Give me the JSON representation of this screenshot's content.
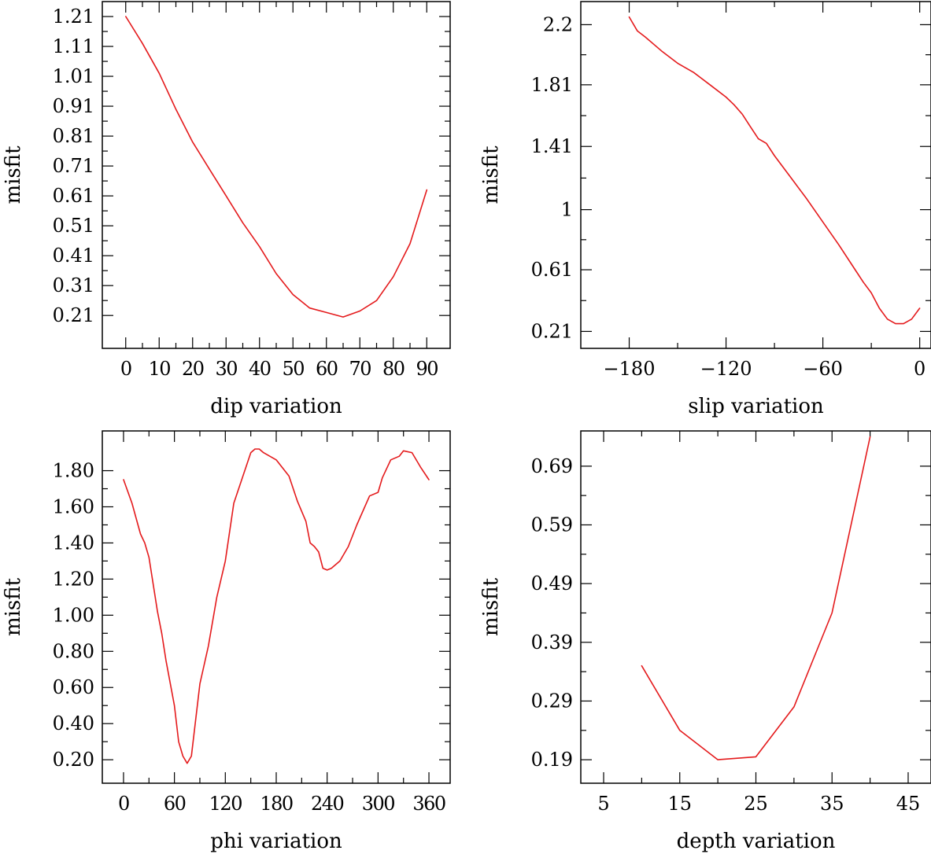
{
  "colors": {
    "line": "#e41a1c",
    "axes": "#000000",
    "background": "#ffffff"
  },
  "chart_data": [
    {
      "type": "line",
      "xlabel": "dip     variation",
      "ylabel": "misfit",
      "xlim": [
        -7,
        97
      ],
      "ylim": [
        0.1,
        1.26
      ],
      "xticks": [
        0,
        10,
        20,
        30,
        40,
        50,
        60,
        70,
        80,
        90
      ],
      "xtick_labels": [
        "0",
        "10",
        "20",
        "30",
        "40",
        "50",
        "60",
        "70",
        "80",
        "90"
      ],
      "xtick_compact": true,
      "yticks": [
        0.21,
        0.31,
        0.41,
        0.51,
        0.61,
        0.71,
        0.81,
        0.91,
        1.01,
        1.11,
        1.21
      ],
      "ytick_labels": [
        "0.21",
        "0.31",
        "0.41",
        "0.51",
        "0.61",
        "0.71",
        "0.81",
        "0.91",
        "1.01",
        "1.11",
        "1.21"
      ],
      "grid": false,
      "series": [
        {
          "x": [
            0,
            5,
            10,
            15,
            20,
            25,
            30,
            35,
            40,
            45,
            50,
            55,
            60,
            65,
            70,
            75,
            80,
            85,
            90
          ],
          "y": [
            1.21,
            1.12,
            1.02,
            0.9,
            0.79,
            0.7,
            0.61,
            0.52,
            0.44,
            0.35,
            0.28,
            0.235,
            0.22,
            0.205,
            0.225,
            0.26,
            0.34,
            0.45,
            0.63
          ]
        }
      ]
    },
    {
      "type": "line",
      "xlabel": "slip    variation",
      "ylabel": "misfit",
      "xlim": [
        -210,
        7
      ],
      "ylim": [
        0.1,
        2.35
      ],
      "xticks": [
        -180,
        -120,
        -60,
        0
      ],
      "xtick_labels": [
        "−180",
        "−120",
        "−60",
        "0"
      ],
      "xtick_compact": false,
      "yticks": [
        0.21,
        0.61,
        1,
        1.41,
        1.81,
        2.2
      ],
      "ytick_labels": [
        "0.21",
        "0.61",
        "1",
        "1.41",
        "1.81",
        "2.2"
      ],
      "grid": false,
      "series": [
        {
          "x": [
            -180,
            -175,
            -170,
            -160,
            -150,
            -140,
            -130,
            -120,
            -115,
            -110,
            -105,
            -100,
            -95,
            -90,
            -80,
            -70,
            -60,
            -50,
            -40,
            -35,
            -30,
            -25,
            -20,
            -15,
            -10,
            -5,
            0
          ],
          "y": [
            2.25,
            2.16,
            2.12,
            2.03,
            1.95,
            1.89,
            1.81,
            1.73,
            1.68,
            1.62,
            1.54,
            1.46,
            1.43,
            1.35,
            1.21,
            1.07,
            0.92,
            0.77,
            0.61,
            0.53,
            0.46,
            0.36,
            0.29,
            0.26,
            0.26,
            0.29,
            0.36
          ]
        }
      ]
    },
    {
      "type": "line",
      "xlabel": "phi     variation",
      "ylabel": "misfit",
      "xlim": [
        -25,
        385
      ],
      "ylim": [
        0.07,
        2.02
      ],
      "xticks": [
        0,
        60,
        120,
        180,
        240,
        300,
        360
      ],
      "xtick_labels": [
        "0",
        "60",
        "120",
        "180",
        "240",
        "300",
        "360"
      ],
      "xtick_compact": true,
      "yticks": [
        0.2,
        0.4,
        0.6,
        0.8,
        1.0,
        1.2,
        1.4,
        1.6,
        1.8
      ],
      "ytick_labels": [
        "0.20",
        "0.40",
        "0.60",
        "0.80",
        "1.00",
        "1.20",
        "1.40",
        "1.60",
        "1.80"
      ],
      "grid": false,
      "series": [
        {
          "x": [
            0,
            10,
            20,
            25,
            30,
            40,
            45,
            50,
            60,
            65,
            70,
            75,
            80,
            90,
            100,
            110,
            120,
            130,
            140,
            150,
            155,
            160,
            165,
            180,
            195,
            205,
            215,
            220,
            225,
            230,
            235,
            240,
            245,
            255,
            265,
            275,
            290,
            300,
            305,
            315,
            325,
            330,
            340,
            350,
            360
          ],
          "y": [
            1.75,
            1.62,
            1.45,
            1.4,
            1.32,
            1.02,
            0.9,
            0.75,
            0.5,
            0.3,
            0.22,
            0.18,
            0.22,
            0.62,
            0.83,
            1.1,
            1.3,
            1.62,
            1.76,
            1.9,
            1.92,
            1.92,
            1.9,
            1.86,
            1.77,
            1.63,
            1.52,
            1.4,
            1.38,
            1.35,
            1.26,
            1.25,
            1.26,
            1.3,
            1.38,
            1.5,
            1.66,
            1.68,
            1.76,
            1.86,
            1.88,
            1.91,
            1.9,
            1.82,
            1.75
          ]
        }
      ]
    },
    {
      "type": "line",
      "xlabel": "depth  variation",
      "ylabel": "misfit",
      "xlim": [
        2,
        48
      ],
      "ylim": [
        0.15,
        0.75
      ],
      "xticks": [
        5,
        15,
        25,
        35,
        45
      ],
      "xtick_labels": [
        "5",
        "15",
        "25",
        "35",
        "45"
      ],
      "xtick_compact": false,
      "yticks": [
        0.19,
        0.29,
        0.39,
        0.49,
        0.59,
        0.69
      ],
      "ytick_labels": [
        "0.19",
        "0.29",
        "0.39",
        "0.49",
        "0.59",
        "0.69"
      ],
      "grid": false,
      "series": [
        {
          "x": [
            10,
            15,
            20,
            25,
            30,
            35,
            40
          ],
          "y": [
            0.35,
            0.24,
            0.19,
            0.195,
            0.28,
            0.44,
            0.74
          ]
        }
      ]
    }
  ]
}
